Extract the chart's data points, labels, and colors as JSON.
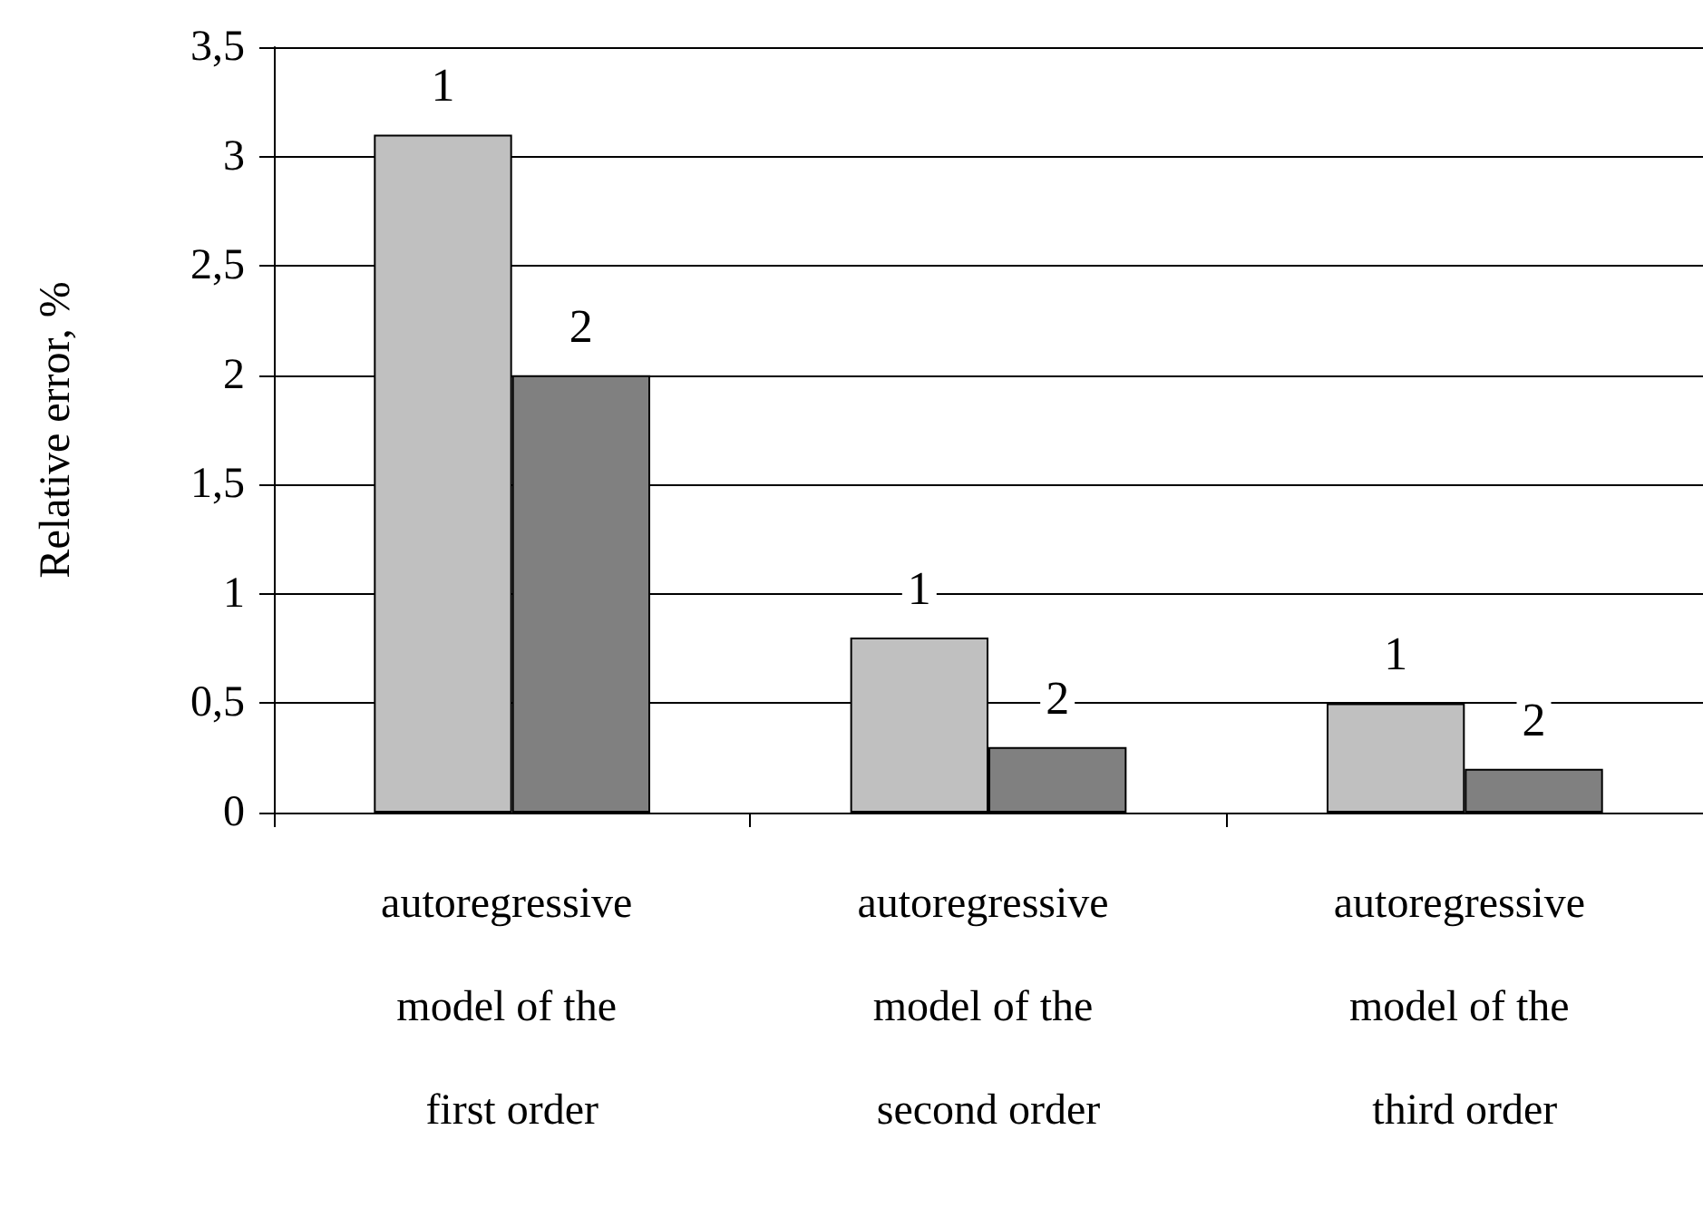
{
  "chart_data": {
    "type": "bar",
    "ylabel": "Relative error, %",
    "categories": [
      "autoregressive model of the first order",
      "autoregressive model of the second order",
      "autoregressive model of the third order"
    ],
    "series": [
      {
        "name": "1",
        "color": "#c0c0c0",
        "values": [
          3.1,
          0.8,
          0.5
        ]
      },
      {
        "name": "2",
        "color": "#808080",
        "values": [
          2.0,
          0.3,
          0.2
        ]
      }
    ],
    "ylim": [
      0,
      3.5
    ],
    "yticks": [
      0,
      {
        "value": 0.5,
        "label": "0,5"
      },
      1,
      {
        "value": 1.5,
        "label": "1,5"
      },
      2,
      {
        "value": 2.5,
        "label": "2,5"
      },
      3,
      {
        "value": 3.5,
        "label": "3,5"
      }
    ],
    "grid": "y",
    "legend": false
  }
}
